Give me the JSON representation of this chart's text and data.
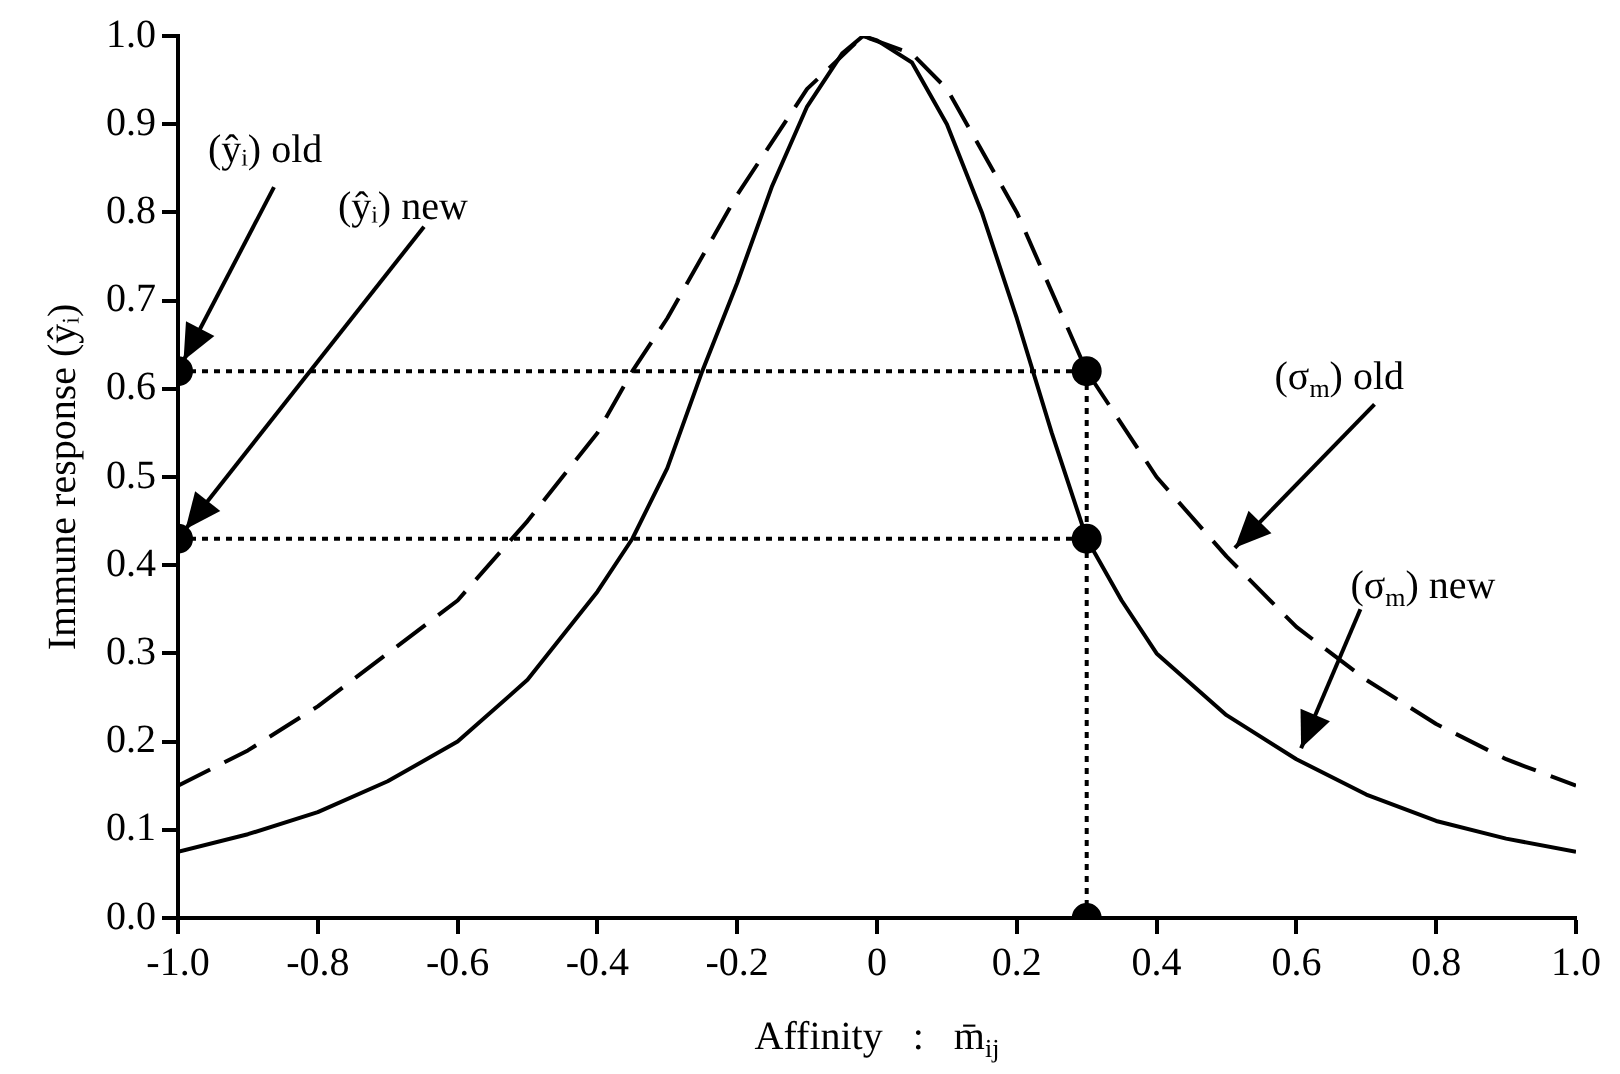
{
  "chart_data": {
    "type": "line",
    "xlabel": "Affinity   :   m̄$_{ij}$",
    "ylabel": "Immune response (ŷᵢ)",
    "xlim": [
      -1,
      1
    ],
    "ylim": [
      0,
      1
    ],
    "xticks": [
      {
        "value": -1,
        "label": "-1.0"
      },
      -0.8,
      -0.6,
      -0.4,
      -0.2,
      0,
      0.2,
      0.4,
      0.6,
      0.8,
      {
        "value": 1,
        "label": "1.0"
      }
    ],
    "yticks": [
      {
        "value": 0,
        "label": "0.0"
      },
      0.1,
      0.2,
      0.3,
      0.4,
      0.5,
      0.6,
      0.7,
      0.8,
      0.9,
      {
        "value": 1,
        "label": "1.0"
      }
    ],
    "grid": false,
    "legend": false,
    "series": [
      {
        "type": "line",
        "color": "#000000",
        "line_style": "solid",
        "marker": "none",
        "x": [
          -1,
          -0.9,
          -0.8,
          -0.7,
          -0.6,
          -0.5,
          -0.4,
          -0.35,
          -0.3,
          -0.25,
          -0.2,
          -0.15,
          -0.1,
          -0.05,
          -0.02,
          0,
          0.05,
          0.1,
          0.15,
          0.2,
          0.25,
          0.3,
          0.35,
          0.4,
          0.5,
          0.6,
          0.7,
          0.8,
          0.9,
          1
        ],
        "values": [
          0.075,
          0.095,
          0.12,
          0.155,
          0.2,
          0.27,
          0.37,
          0.43,
          0.51,
          0.62,
          0.72,
          0.83,
          0.92,
          0.98,
          1,
          0.995,
          0.97,
          0.9,
          0.8,
          0.68,
          0.55,
          0.43,
          0.36,
          0.3,
          0.23,
          0.18,
          0.14,
          0.11,
          0.09,
          0.075
        ]
      },
      {
        "type": "line",
        "color": "#000000",
        "line_style": "dashed",
        "marker": "none",
        "x": [
          -1,
          -0.9,
          -0.8,
          -0.7,
          -0.6,
          -0.5,
          -0.4,
          -0.35,
          -0.3,
          -0.2,
          -0.1,
          -0.02,
          0.05,
          0.1,
          0.2,
          0.3,
          0.4,
          0.5,
          0.6,
          0.7,
          0.8,
          0.9,
          1
        ],
        "values": [
          0.15,
          0.19,
          0.24,
          0.3,
          0.36,
          0.45,
          0.55,
          0.62,
          0.68,
          0.82,
          0.94,
          1,
          0.98,
          0.94,
          0.8,
          0.62,
          0.5,
          0.41,
          0.33,
          0.27,
          0.22,
          0.18,
          0.15
        ]
      },
      {
        "type": "line",
        "color": "#000000",
        "line_style": "dotted",
        "marker": "none",
        "x": [
          -1,
          0.3
        ],
        "values": [
          0.62,
          0.62
        ]
      },
      {
        "type": "line",
        "color": "#000000",
        "line_style": "dotted",
        "marker": "none",
        "x": [
          -1,
          0.3
        ],
        "values": [
          0.43,
          0.43
        ]
      },
      {
        "type": "line",
        "color": "#000000",
        "line_style": "dotted",
        "marker": "none",
        "x": [
          0.3,
          0.3
        ],
        "values": [
          0,
          0.62
        ]
      },
      {
        "type": "scatter",
        "color": "#000000",
        "marker": "circle",
        "x": [
          -1,
          -1,
          0.3,
          0.3,
          0.3
        ],
        "values": [
          0.62,
          0.43,
          0.62,
          0.43,
          0
        ]
      }
    ],
    "annotations": [
      {
        "text": "(ŷᵢ) old",
        "x": -1,
        "y": 0.62
      },
      {
        "text": "(ŷᵢ) new",
        "x": -1,
        "y": 0.43
      },
      {
        "text": "(σ$_{m}$) old",
        "x": 0.5,
        "y": 0.41
      },
      {
        "text": "(σ$_{m}$) new",
        "x": 0.6,
        "y": 0.18
      }
    ]
  }
}
